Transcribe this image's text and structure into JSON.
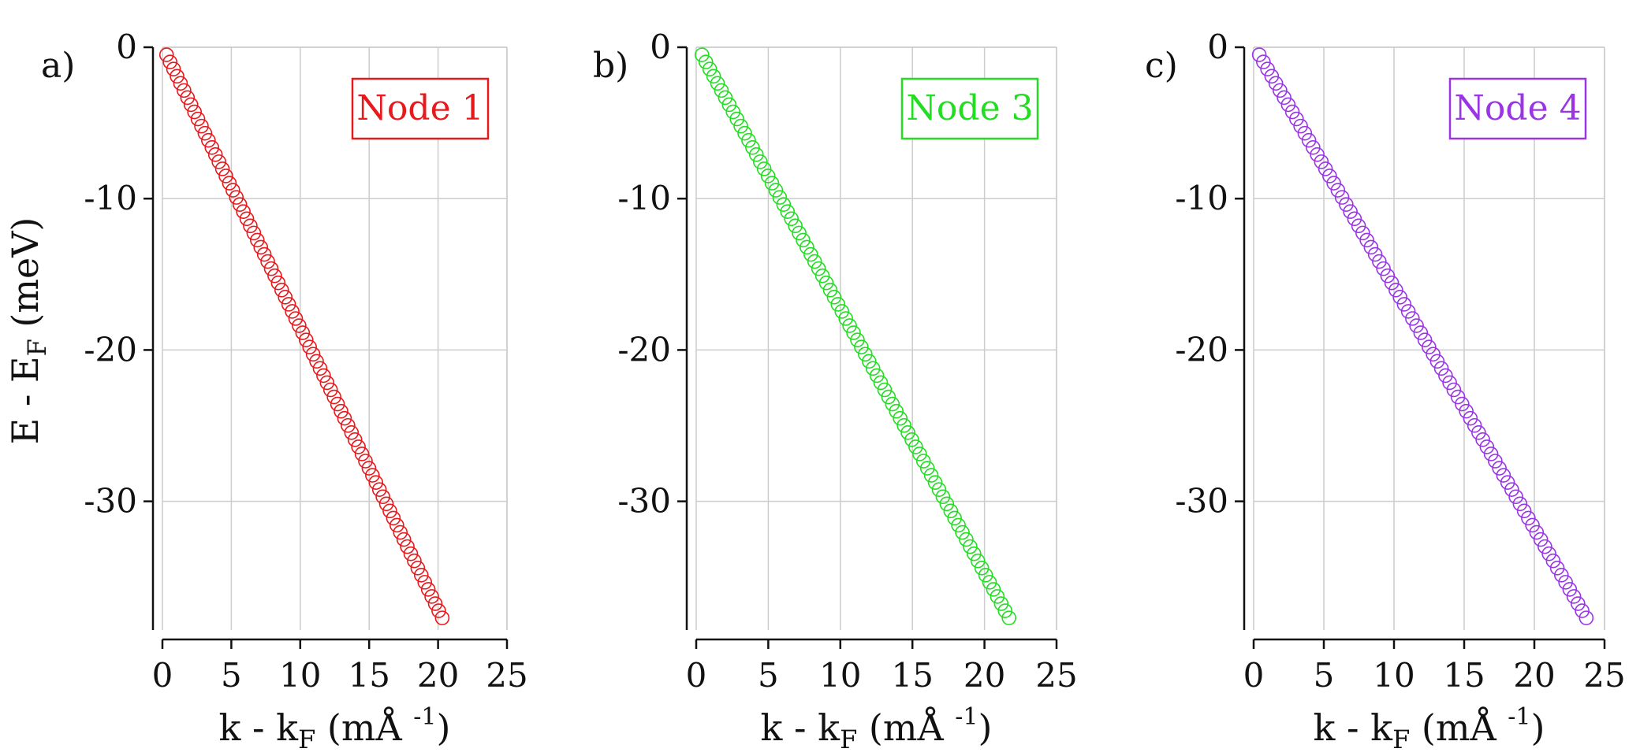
{
  "figure": {
    "ylabel": {
      "main": "E - E",
      "sub": "F",
      "tail": " (meV)"
    },
    "xlabel": {
      "main": "k - k",
      "sub": "F",
      "tail": "  (mÅ ",
      "sup": "-1",
      "close": ")"
    }
  },
  "chart_data": [
    {
      "type": "scatter",
      "panel_label": "a)",
      "legend": "Node 1",
      "color": "#e8191c",
      "marker": "open-circle",
      "xlim": [
        0,
        25
      ],
      "ylim": [
        -38.5,
        0
      ],
      "xticks": [
        "0",
        "5",
        "10",
        "15",
        "20",
        "25"
      ],
      "yticks": [
        "0",
        "-10",
        "-20",
        "-30"
      ],
      "grid": true,
      "legend_position": "top-right",
      "k_start": 0.3,
      "k_end": 20.3,
      "E_start": -0.5,
      "E_end": -37.7,
      "n_points": 80
    },
    {
      "type": "scatter",
      "panel_label": "b)",
      "legend": "Node 3",
      "color": "#22dd22",
      "marker": "open-circle",
      "xlim": [
        0,
        25
      ],
      "ylim": [
        -38.5,
        0
      ],
      "xticks": [
        "0",
        "5",
        "10",
        "15",
        "20",
        "25"
      ],
      "yticks": [
        "0",
        "-10",
        "-20",
        "-30"
      ],
      "grid": true,
      "legend_position": "top-right",
      "k_start": 0.4,
      "k_end": 21.7,
      "E_start": -0.5,
      "E_end": -37.7,
      "n_points": 80
    },
    {
      "type": "scatter",
      "panel_label": "c)",
      "legend": "Node 4",
      "color": "#9a35e6",
      "marker": "open-circle",
      "xlim": [
        0,
        25
      ],
      "ylim": [
        -38.5,
        0
      ],
      "xticks": [
        "0",
        "5",
        "10",
        "15",
        "20",
        "25"
      ],
      "yticks": [
        "0",
        "-10",
        "-20",
        "-30"
      ],
      "grid": true,
      "legend_position": "top-right",
      "k_start": 0.4,
      "k_end": 23.7,
      "E_start": -0.5,
      "E_end": -37.7,
      "n_points": 80
    }
  ]
}
